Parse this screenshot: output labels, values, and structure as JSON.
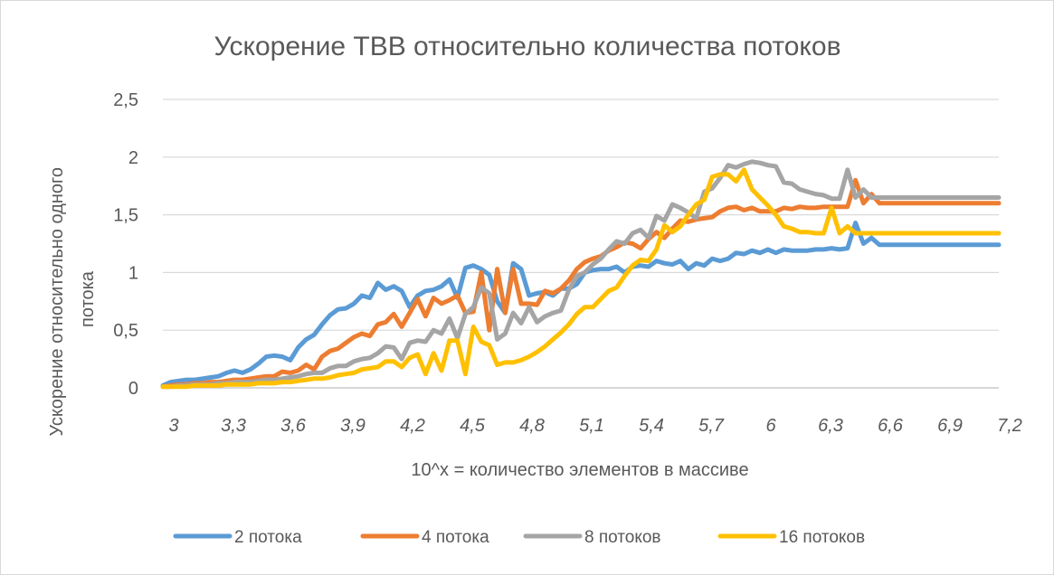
{
  "chart_data": {
    "type": "line",
    "title": "Ускорение TBB относительно количества потоков",
    "xlabel": "10^x = количество элементов в массиве",
    "ylabel": "Ускорение относительно одного потока",
    "ylim": [
      0,
      2.5
    ],
    "y_ticks": [
      0,
      0.5,
      1,
      1.5,
      2,
      2.5
    ],
    "y_tick_labels": [
      "0",
      "0,5",
      "1",
      "1,5",
      "2",
      "2,5"
    ],
    "x_ticks": [
      3,
      3.3,
      3.6,
      3.9,
      4.2,
      4.5,
      4.8,
      5.1,
      5.4,
      5.7,
      6,
      6.3,
      6.6,
      6.9,
      7.2
    ],
    "x_tick_labels": [
      "3",
      "3,3",
      "3,6",
      "3,9",
      "4,2",
      "4,5",
      "4,8",
      "5,1",
      "5,4",
      "5,7",
      "6",
      "6,3",
      "6,6",
      "6,9",
      "7,2"
    ],
    "x": [
      3.0,
      3.04,
      3.08,
      3.12,
      3.16,
      3.2,
      3.24,
      3.28,
      3.32,
      3.36,
      3.4,
      3.44,
      3.48,
      3.52,
      3.56,
      3.6,
      3.64,
      3.68,
      3.72,
      3.76,
      3.8,
      3.84,
      3.88,
      3.92,
      3.96,
      4.0,
      4.04,
      4.08,
      4.12,
      4.16,
      4.2,
      4.24,
      4.28,
      4.32,
      4.36,
      4.4,
      4.44,
      4.48,
      4.52,
      4.56,
      4.6,
      4.64,
      4.68,
      4.72,
      4.76,
      4.8,
      4.84,
      4.88,
      4.92,
      4.96,
      5.0,
      5.04,
      5.08,
      5.12,
      5.16,
      5.2,
      5.24,
      5.28,
      5.32,
      5.36,
      5.4,
      5.44,
      5.48,
      5.52,
      5.56,
      5.6,
      5.64,
      5.68,
      5.72,
      5.76,
      5.8,
      5.84,
      5.88,
      5.92,
      5.96,
      6.0,
      6.04,
      6.08,
      6.12,
      6.16,
      6.2,
      6.24,
      6.28,
      6.32,
      6.36,
      6.4,
      6.44,
      6.48,
      6.52,
      6.56,
      6.6,
      6.64,
      6.68,
      6.72,
      6.76,
      6.8,
      6.84,
      6.88,
      6.92,
      6.96,
      7.0,
      7.04,
      7.08,
      7.12,
      7.16,
      7.2
    ],
    "series": [
      {
        "name": "2 потока",
        "color": "#5b9bd5",
        "values": [
          0.02,
          0.05,
          0.06,
          0.07,
          0.07,
          0.08,
          0.09,
          0.1,
          0.13,
          0.15,
          0.13,
          0.16,
          0.21,
          0.27,
          0.28,
          0.27,
          0.24,
          0.35,
          0.42,
          0.46,
          0.55,
          0.63,
          0.68,
          0.69,
          0.73,
          0.8,
          0.78,
          0.91,
          0.85,
          0.88,
          0.84,
          0.7,
          0.8,
          0.84,
          0.85,
          0.88,
          0.94,
          0.78,
          1.04,
          1.06,
          1.03,
          0.98,
          0.75,
          0.65,
          1.08,
          1.03,
          0.8,
          0.82,
          0.83,
          0.8,
          0.86,
          0.86,
          0.9,
          1.0,
          1.02,
          1.03,
          1.03,
          1.05,
          1.0,
          1.05,
          1.06,
          1.05,
          1.1,
          1.08,
          1.07,
          1.1,
          1.03,
          1.08,
          1.06,
          1.12,
          1.1,
          1.12,
          1.17,
          1.16,
          1.19,
          1.17,
          1.2,
          1.17,
          1.2,
          1.19,
          1.19,
          1.19,
          1.2,
          1.2,
          1.21,
          1.2,
          1.21,
          1.43,
          1.25,
          1.3,
          1.24,
          1.24,
          1.24,
          1.24,
          1.24,
          1.24,
          1.24,
          1.24,
          1.24,
          1.24,
          1.24,
          1.24,
          1.24,
          1.24,
          1.24,
          1.24
        ]
      },
      {
        "name": "4 потока",
        "color": "#ed7d31",
        "values": [
          0.01,
          0.02,
          0.03,
          0.03,
          0.04,
          0.04,
          0.05,
          0.05,
          0.06,
          0.07,
          0.07,
          0.08,
          0.09,
          0.1,
          0.1,
          0.14,
          0.13,
          0.15,
          0.2,
          0.16,
          0.27,
          0.32,
          0.34,
          0.39,
          0.44,
          0.47,
          0.45,
          0.55,
          0.57,
          0.64,
          0.53,
          0.65,
          0.77,
          0.62,
          0.78,
          0.73,
          0.76,
          0.8,
          0.65,
          0.66,
          1.0,
          0.5,
          1.03,
          0.65,
          1.03,
          0.73,
          0.73,
          0.72,
          0.84,
          0.82,
          0.86,
          0.93,
          1.03,
          1.09,
          1.12,
          1.14,
          1.19,
          1.22,
          1.26,
          1.25,
          1.21,
          1.29,
          1.35,
          1.3,
          1.38,
          1.45,
          1.44,
          1.46,
          1.47,
          1.48,
          1.53,
          1.56,
          1.57,
          1.54,
          1.56,
          1.53,
          1.53,
          1.53,
          1.56,
          1.55,
          1.57,
          1.56,
          1.56,
          1.57,
          1.57,
          1.57,
          1.57,
          1.8,
          1.6,
          1.68,
          1.6,
          1.6,
          1.6,
          1.6,
          1.6,
          1.6,
          1.6,
          1.6,
          1.6,
          1.6,
          1.6,
          1.6,
          1.6,
          1.6,
          1.6,
          1.6
        ]
      },
      {
        "name": "8 потоков",
        "color": "#a5a5a5",
        "values": [
          0.01,
          0.01,
          0.02,
          0.02,
          0.03,
          0.03,
          0.03,
          0.04,
          0.04,
          0.05,
          0.05,
          0.05,
          0.06,
          0.07,
          0.07,
          0.08,
          0.09,
          0.1,
          0.12,
          0.13,
          0.13,
          0.17,
          0.19,
          0.19,
          0.23,
          0.25,
          0.26,
          0.3,
          0.36,
          0.35,
          0.25,
          0.39,
          0.41,
          0.4,
          0.5,
          0.47,
          0.6,
          0.43,
          0.64,
          0.7,
          0.87,
          0.82,
          0.42,
          0.47,
          0.65,
          0.56,
          0.7,
          0.57,
          0.62,
          0.65,
          0.67,
          0.85,
          0.97,
          1.0,
          1.07,
          1.12,
          1.2,
          1.27,
          1.25,
          1.34,
          1.37,
          1.3,
          1.49,
          1.45,
          1.59,
          1.56,
          1.52,
          1.47,
          1.7,
          1.73,
          1.82,
          1.93,
          1.91,
          1.94,
          1.96,
          1.95,
          1.93,
          1.92,
          1.78,
          1.77,
          1.72,
          1.7,
          1.68,
          1.67,
          1.64,
          1.64,
          1.89,
          1.65,
          1.72,
          1.65,
          1.65,
          1.65,
          1.65,
          1.65,
          1.65,
          1.65,
          1.65,
          1.65,
          1.65,
          1.65,
          1.65,
          1.65,
          1.65,
          1.65,
          1.65,
          1.65
        ]
      },
      {
        "name": "16 потоков",
        "color": "#ffc000",
        "values": [
          0.01,
          0.01,
          0.01,
          0.01,
          0.02,
          0.02,
          0.02,
          0.02,
          0.03,
          0.03,
          0.03,
          0.03,
          0.04,
          0.04,
          0.04,
          0.05,
          0.05,
          0.06,
          0.07,
          0.08,
          0.08,
          0.09,
          0.11,
          0.12,
          0.13,
          0.16,
          0.17,
          0.18,
          0.23,
          0.23,
          0.18,
          0.26,
          0.29,
          0.12,
          0.3,
          0.15,
          0.41,
          0.41,
          0.12,
          0.53,
          0.4,
          0.37,
          0.2,
          0.22,
          0.22,
          0.24,
          0.27,
          0.31,
          0.36,
          0.42,
          0.48,
          0.55,
          0.64,
          0.7,
          0.7,
          0.77,
          0.84,
          0.87,
          0.97,
          1.06,
          1.11,
          1.1,
          1.2,
          1.41,
          1.35,
          1.4,
          1.5,
          1.59,
          1.63,
          1.83,
          1.85,
          1.85,
          1.79,
          1.89,
          1.72,
          1.65,
          1.58,
          1.5,
          1.4,
          1.38,
          1.35,
          1.35,
          1.34,
          1.34,
          1.56,
          1.34,
          1.4,
          1.34,
          1.34,
          1.34,
          1.34,
          1.34,
          1.34,
          1.34,
          1.34,
          1.34,
          1.34,
          1.34,
          1.34,
          1.34,
          1.34,
          1.34,
          1.34,
          1.34,
          1.34,
          1.34
        ]
      }
    ],
    "grid": true,
    "legend_position": "bottom"
  }
}
